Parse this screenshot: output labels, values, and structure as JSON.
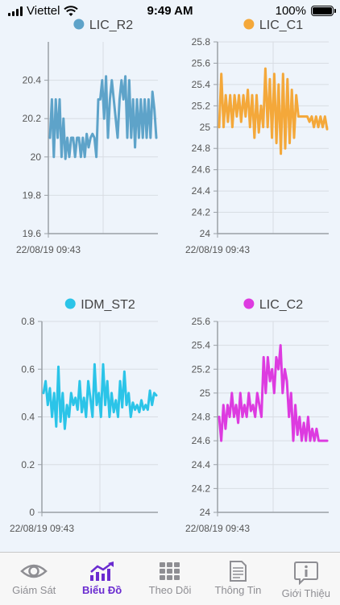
{
  "status_bar": {
    "carrier": "Viettel",
    "time": "9:49 AM",
    "battery": "100%"
  },
  "charts": [
    {
      "chart_data": {
        "type": "line",
        "series": [
          {
            "name": "LIC_R2",
            "color": "#5ea3c9",
            "values": [
              20.1,
              20.3,
              20.0,
              20.3,
              20.1,
              20.3,
              20.0,
              20.2,
              19.99,
              20.1,
              20.0,
              20.1,
              20.1,
              20.0,
              20.1,
              20.1,
              20.0,
              20.1,
              20.0,
              20.12,
              20.05,
              20.1,
              20.12,
              20.1,
              20.0,
              20.3,
              20.3,
              20.4,
              20.2,
              20.42,
              20.1,
              20.3,
              20.4,
              20.3,
              20.2,
              20.1,
              20.3,
              20.4,
              20.3,
              20.42,
              20.1,
              20.4,
              20.1,
              20.3,
              20.05,
              20.3,
              20.1,
              20.3,
              20.1,
              20.3,
              20.1,
              20.3,
              20.1,
              20.34,
              20.25,
              20.1
            ]
          }
        ],
        "ylim": [
          19.6,
          20.6
        ],
        "yticks": [
          "19.6",
          "19.8",
          "20",
          "20.2",
          "20.4"
        ],
        "xlabel_start": "22/08/19 09:43"
      }
    },
    {
      "chart_data": {
        "type": "line",
        "series": [
          {
            "name": "LIC_C1",
            "color": "#f4a83a",
            "values": [
              25.0,
              25.5,
              25.0,
              25.3,
              25.05,
              25.3,
              25.0,
              25.3,
              25.1,
              25.3,
              25.05,
              25.3,
              25.1,
              25.35,
              25.0,
              25.3,
              24.9,
              25.3,
              24.95,
              25.2,
              25.0,
              25.55,
              25.0,
              25.45,
              24.9,
              25.5,
              24.85,
              25.4,
              24.75,
              25.5,
              24.8,
              25.45,
              24.85,
              25.35,
              24.9,
              25.3,
              25.1,
              25.1,
              25.1,
              25.1,
              25.1,
              25.05,
              25.1,
              25.0,
              25.1,
              25.0,
              25.1,
              25.0,
              25.1,
              24.98
            ]
          }
        ],
        "ylim": [
          24.0,
          25.8
        ],
        "yticks": [
          "24",
          "24.2",
          "24.4",
          "24.6",
          "24.8",
          "25",
          "25.2",
          "25.4",
          "25.6",
          "25.8"
        ],
        "xlabel_start": "22/08/19 09:43"
      }
    },
    {
      "chart_data": {
        "type": "line",
        "series": [
          {
            "name": "IDM_ST2",
            "color": "#2bc4e8",
            "values": [
              0.5,
              0.55,
              0.45,
              0.52,
              0.4,
              0.5,
              0.36,
              0.61,
              0.38,
              0.5,
              0.35,
              0.45,
              0.4,
              0.5,
              0.45,
              0.48,
              0.43,
              0.55,
              0.42,
              0.48,
              0.4,
              0.55,
              0.48,
              0.4,
              0.62,
              0.45,
              0.5,
              0.4,
              0.62,
              0.45,
              0.55,
              0.4,
              0.5,
              0.42,
              0.47,
              0.4,
              0.55,
              0.44,
              0.59,
              0.45,
              0.5,
              0.4,
              0.46,
              0.43,
              0.45,
              0.42,
              0.47,
              0.43,
              0.45,
              0.43,
              0.51,
              0.45,
              0.5,
              0.49
            ]
          }
        ],
        "ylim": [
          0,
          0.8
        ],
        "yticks": [
          "0",
          "0.2",
          "0.4",
          "0.6",
          "0.8"
        ],
        "xlabel_start": "22/08/19 09:43"
      }
    },
    {
      "chart_data": {
        "type": "line",
        "series": [
          {
            "name": "LIC_C2",
            "color": "#dd3be0",
            "values": [
              24.8,
              24.6,
              24.9,
              24.7,
              24.9,
              24.8,
              25.0,
              24.8,
              24.9,
              24.75,
              25.0,
              24.8,
              24.9,
              24.8,
              25.0,
              24.85,
              24.9,
              24.8,
              25.0,
              24.9,
              24.8,
              25.3,
              25.0,
              25.3,
              25.1,
              25.2,
              25.0,
              25.3,
              25.2,
              25.4,
              25.0,
              25.2,
              25.1,
              24.8,
              25.0,
              24.6,
              24.9,
              24.65,
              24.8,
              24.6,
              24.75,
              24.6,
              24.8,
              24.6,
              24.7,
              24.6,
              24.7,
              24.6,
              24.6,
              24.6,
              24.6,
              24.6
            ]
          }
        ],
        "ylim": [
          24.0,
          25.6
        ],
        "yticks": [
          "24",
          "24.2",
          "24.4",
          "24.6",
          "24.8",
          "25",
          "25.2",
          "25.4",
          "25.6"
        ],
        "xlabel_start": "22/08/19 09:43"
      }
    }
  ],
  "tab_bar": {
    "items": [
      {
        "label": "Giám Sát",
        "icon": "eye-icon",
        "active": false
      },
      {
        "label": "Biểu Đồ",
        "icon": "chart-icon",
        "active": true
      },
      {
        "label": "Theo Dõi",
        "icon": "grid-icon",
        "active": false
      },
      {
        "label": "Thông Tin",
        "icon": "document-icon",
        "active": false
      },
      {
        "label": "Giới Thiệu",
        "icon": "info-icon",
        "active": false
      }
    ],
    "active_color": "#6a2bd0",
    "inactive_color": "#8e8e93"
  }
}
